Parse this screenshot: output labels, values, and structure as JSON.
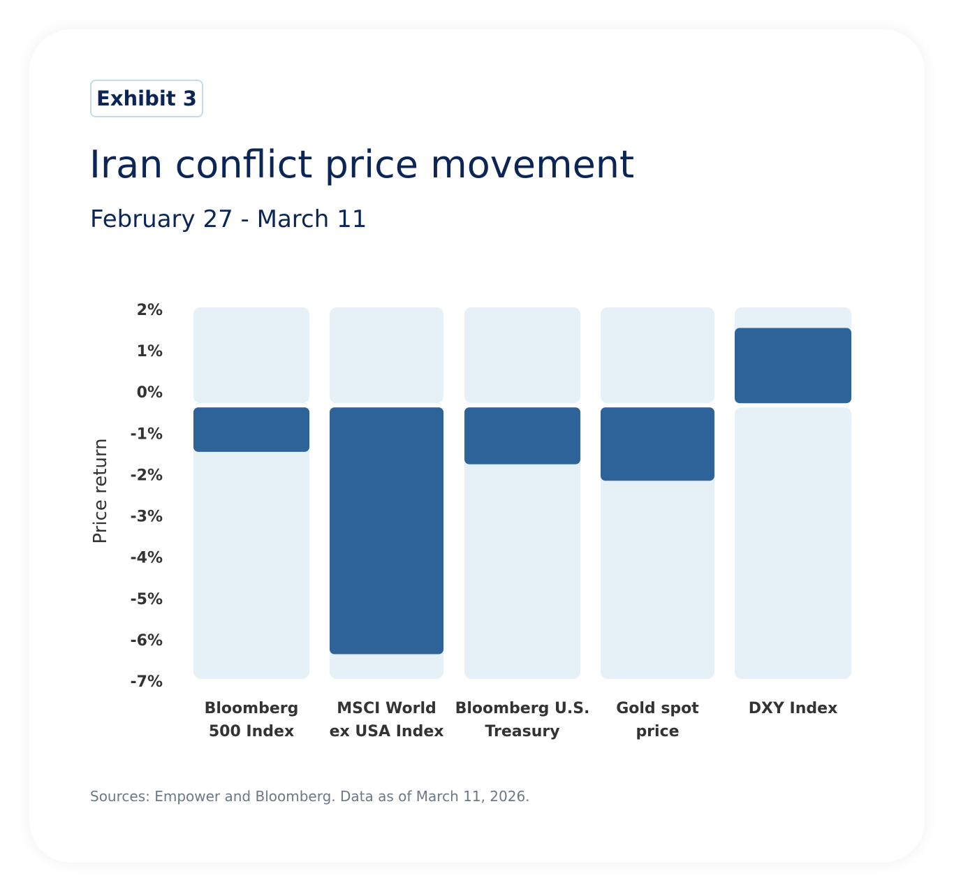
{
  "badge": "Exhibit 3",
  "title": "Iran conflict price movement",
  "subtitle": "February 27 - March 11",
  "source": "Sources:  Empower and Bloomberg. Data as of March 11, 2026.",
  "chart_data": {
    "type": "bar",
    "title": "Iran conflict price movement",
    "subtitle": "February 27 - March 11",
    "ylabel": "Price return",
    "xlabel": "",
    "ylim": [
      -7,
      2
    ],
    "yticks": [
      "2%",
      "1%",
      "0%",
      "-1%",
      "-2%",
      "-3%",
      "-4%",
      "-5%",
      "-6%",
      "-7%"
    ],
    "categories": [
      [
        "Bloomberg",
        "500 Index"
      ],
      [
        "MSCI World",
        "ex USA Index"
      ],
      [
        "Bloomberg U.S.",
        "Treasury"
      ],
      [
        "Gold spot",
        "price"
      ],
      [
        "DXY Index"
      ]
    ],
    "values": [
      -1.5,
      -6.4,
      -1.8,
      -2.2,
      1.5
    ],
    "grid": false,
    "legend": "none",
    "colors": {
      "bar": "#2e6399",
      "background": "#e6f0f7"
    }
  }
}
